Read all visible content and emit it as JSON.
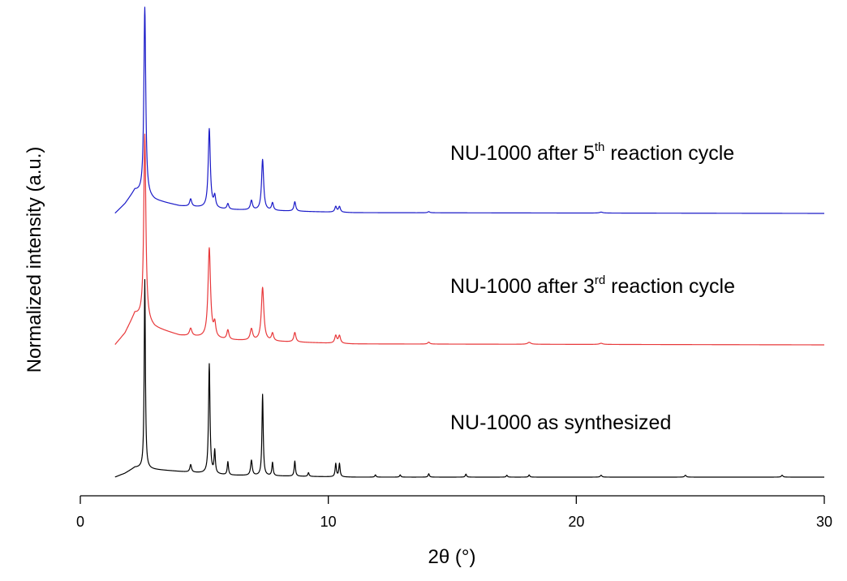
{
  "chart_data": {
    "type": "line",
    "title": "",
    "xlabel": "2θ (°)",
    "ylabel": "Normalized intensity (a.u.)",
    "xlim": [
      0,
      30
    ],
    "x_ticks": [
      0,
      10,
      20,
      30
    ],
    "x_tick_labels": [
      "0",
      "10",
      "20",
      "30"
    ],
    "y_ticks_shown": false,
    "grid": false,
    "legend": "inline labels beside each trace",
    "colors": {
      "NU-1000 as synthesized": "#000000",
      "NU-1000 after 3rd reaction cycle": "#e8383a",
      "NU-1000 after 5th reaction cycle": "#1a1ac8"
    },
    "labels": [
      {
        "prefix": "NU-1000 as synthesized",
        "sup": "",
        "suffix": ""
      },
      {
        "prefix": "NU-1000 after 3",
        "sup": "rd",
        "suffix": " reaction cycle"
      },
      {
        "prefix": "NU-1000 after 5",
        "sup": "th",
        "suffix": " reaction cycle"
      }
    ],
    "series": [
      {
        "name": "NU-1000 as synthesized",
        "x_start": 1.4,
        "baseline": 0.0,
        "background": [
          [
            1.4,
            0.0
          ],
          [
            1.8,
            0.02
          ],
          [
            2.2,
            0.05
          ],
          [
            3.0,
            0.04
          ],
          [
            4.0,
            0.03
          ],
          [
            6.0,
            0.01
          ],
          [
            11.0,
            0.0
          ],
          [
            30.0,
            0.0
          ]
        ],
        "peaks": [
          {
            "x": 2.6,
            "h": 1.0,
            "w": 0.028
          },
          {
            "x": 4.45,
            "h": 0.04,
            "w": 0.04
          },
          {
            "x": 5.2,
            "h": 0.58,
            "w": 0.035
          },
          {
            "x": 5.42,
            "h": 0.12,
            "w": 0.03
          },
          {
            "x": 5.95,
            "h": 0.07,
            "w": 0.03
          },
          {
            "x": 6.9,
            "h": 0.08,
            "w": 0.04
          },
          {
            "x": 7.35,
            "h": 0.43,
            "w": 0.03
          },
          {
            "x": 7.75,
            "h": 0.07,
            "w": 0.03
          },
          {
            "x": 8.65,
            "h": 0.08,
            "w": 0.03
          },
          {
            "x": 9.2,
            "h": 0.02,
            "w": 0.03
          },
          {
            "x": 10.3,
            "h": 0.07,
            "w": 0.03
          },
          {
            "x": 10.45,
            "h": 0.07,
            "w": 0.03
          },
          {
            "x": 11.9,
            "h": 0.012,
            "w": 0.03
          },
          {
            "x": 12.9,
            "h": 0.012,
            "w": 0.03
          },
          {
            "x": 14.05,
            "h": 0.018,
            "w": 0.03
          },
          {
            "x": 15.55,
            "h": 0.016,
            "w": 0.03
          },
          {
            "x": 17.2,
            "h": 0.01,
            "w": 0.03
          },
          {
            "x": 18.1,
            "h": 0.012,
            "w": 0.03
          },
          {
            "x": 21.0,
            "h": 0.01,
            "w": 0.04
          },
          {
            "x": 24.4,
            "h": 0.01,
            "w": 0.04
          },
          {
            "x": 28.3,
            "h": 0.01,
            "w": 0.04
          }
        ]
      },
      {
        "name": "NU-1000 after 3rd reaction cycle",
        "x_start": 1.4,
        "baseline": 0.0,
        "background": [
          [
            1.4,
            0.0
          ],
          [
            1.8,
            0.06
          ],
          [
            2.2,
            0.16
          ],
          [
            3.0,
            0.09
          ],
          [
            4.0,
            0.05
          ],
          [
            6.0,
            0.025
          ],
          [
            11.0,
            0.005
          ],
          [
            30.0,
            0.0
          ]
        ],
        "peaks": [
          {
            "x": 2.6,
            "h": 0.98,
            "w": 0.05
          },
          {
            "x": 4.45,
            "h": 0.04,
            "w": 0.06
          },
          {
            "x": 5.2,
            "h": 0.47,
            "w": 0.06
          },
          {
            "x": 5.42,
            "h": 0.07,
            "w": 0.05
          },
          {
            "x": 5.95,
            "h": 0.05,
            "w": 0.05
          },
          {
            "x": 6.9,
            "h": 0.06,
            "w": 0.06
          },
          {
            "x": 7.35,
            "h": 0.28,
            "w": 0.06
          },
          {
            "x": 7.75,
            "h": 0.04,
            "w": 0.05
          },
          {
            "x": 8.65,
            "h": 0.05,
            "w": 0.05
          },
          {
            "x": 10.3,
            "h": 0.04,
            "w": 0.05
          },
          {
            "x": 10.45,
            "h": 0.04,
            "w": 0.05
          },
          {
            "x": 14.05,
            "h": 0.01,
            "w": 0.05
          },
          {
            "x": 18.1,
            "h": 0.01,
            "w": 0.08
          },
          {
            "x": 21.0,
            "h": 0.006,
            "w": 0.08
          }
        ]
      },
      {
        "name": "NU-1000 after 5th reaction cycle",
        "x_start": 1.4,
        "baseline": 0.0,
        "background": [
          [
            1.4,
            0.0
          ],
          [
            1.8,
            0.05
          ],
          [
            2.2,
            0.12
          ],
          [
            3.0,
            0.07
          ],
          [
            4.0,
            0.04
          ],
          [
            6.0,
            0.02
          ],
          [
            11.0,
            0.004
          ],
          [
            30.0,
            0.0
          ]
        ],
        "peaks": [
          {
            "x": 2.6,
            "h": 1.0,
            "w": 0.045
          },
          {
            "x": 4.45,
            "h": 0.04,
            "w": 0.05
          },
          {
            "x": 5.2,
            "h": 0.42,
            "w": 0.05
          },
          {
            "x": 5.42,
            "h": 0.06,
            "w": 0.045
          },
          {
            "x": 5.95,
            "h": 0.03,
            "w": 0.045
          },
          {
            "x": 6.9,
            "h": 0.05,
            "w": 0.05
          },
          {
            "x": 7.35,
            "h": 0.27,
            "w": 0.05
          },
          {
            "x": 7.75,
            "h": 0.04,
            "w": 0.045
          },
          {
            "x": 8.65,
            "h": 0.05,
            "w": 0.045
          },
          {
            "x": 10.3,
            "h": 0.03,
            "w": 0.045
          },
          {
            "x": 10.45,
            "h": 0.03,
            "w": 0.045
          },
          {
            "x": 14.05,
            "h": 0.006,
            "w": 0.05
          },
          {
            "x": 21.0,
            "h": 0.005,
            "w": 0.08
          }
        ]
      }
    ]
  }
}
